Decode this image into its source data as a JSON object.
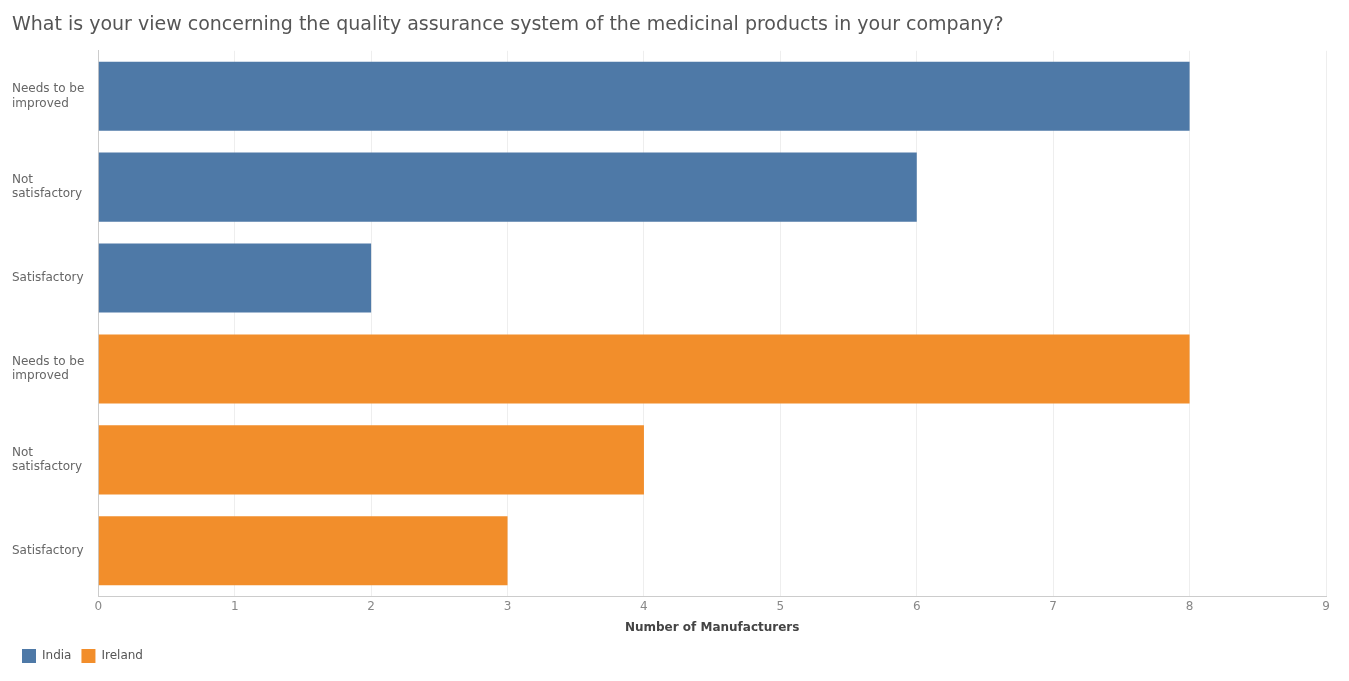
{
  "chart_data": {
    "type": "bar",
    "orientation": "horizontal",
    "title": "What is your view concerning the quality assurance system of the medicinal products in your company?",
    "xlabel": "Number of Manufacturers",
    "categories": [
      "Needs to be improved",
      "Not satisfactory",
      "Satisfactory",
      "Needs to be improved",
      "Not satisfactory",
      "Satisfactory"
    ],
    "series": [
      {
        "name": "India",
        "color": "#4e79a7",
        "values": [
          8,
          6,
          2,
          null,
          null,
          null
        ]
      },
      {
        "name": "Ireland",
        "color": "#f28e2b",
        "values": [
          null,
          null,
          null,
          8,
          4,
          3
        ]
      }
    ],
    "xlim": [
      0,
      9
    ],
    "xticks": [
      0,
      1,
      2,
      3,
      4,
      5,
      6,
      7,
      8,
      9
    ],
    "grid": "x",
    "legend": "bottom left"
  }
}
